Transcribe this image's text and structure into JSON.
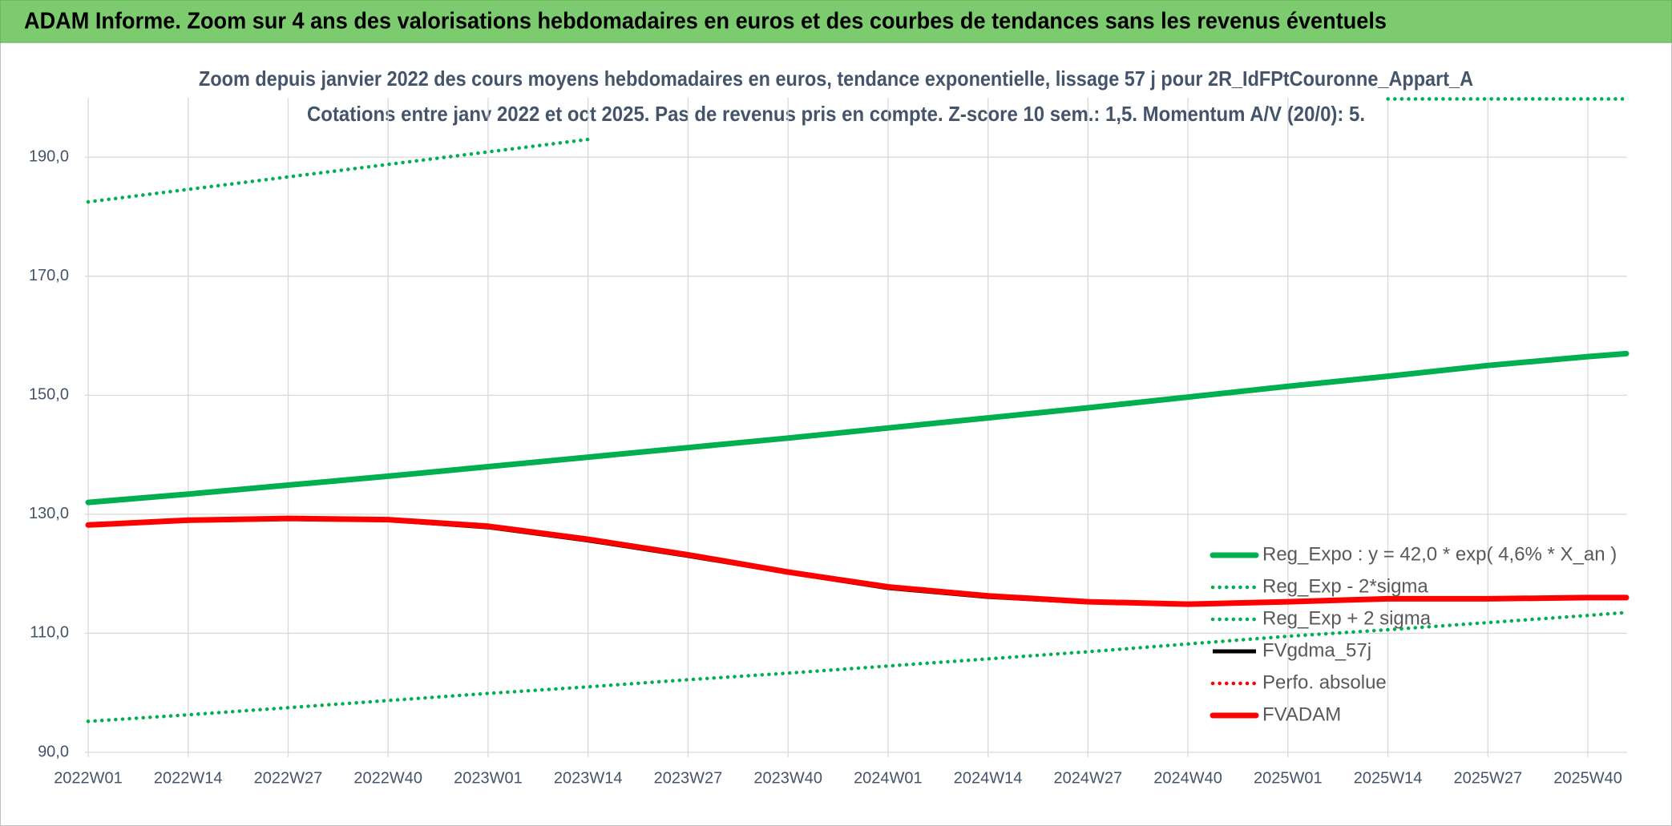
{
  "header": {
    "title": "ADAM Informe. Zoom sur 4 ans des valorisations hebdomadaires en euros et des courbes de tendances sans les revenus éventuels"
  },
  "chart_data": {
    "type": "line",
    "title": "Zoom depuis janvier 2022 des cours moyens hebdomadaires en euros, tendance exponentielle, lissage 57 j pour 2R_IdFPtCouronne_Appart_A",
    "subtitle": "Cotations entre janv 2022 et oct 2025. Pas de revenus pris en compte. Z-score 10 sem.: 1,5. Momentum A/V (20/0): 5.",
    "x": [
      0,
      13,
      26,
      39,
      52,
      65,
      78,
      91,
      104,
      117,
      130,
      143,
      156,
      169,
      182,
      195,
      200
    ],
    "xlim": [
      0,
      200
    ],
    "xticks": [
      {
        "value": 0,
        "label": "2022W01"
      },
      {
        "value": 13,
        "label": "2022W14"
      },
      {
        "value": 26,
        "label": "2022W27"
      },
      {
        "value": 39,
        "label": "2022W40"
      },
      {
        "value": 52,
        "label": "2023W01"
      },
      {
        "value": 65,
        "label": "2023W14"
      },
      {
        "value": 78,
        "label": "2023W27"
      },
      {
        "value": 91,
        "label": "2023W40"
      },
      {
        "value": 104,
        "label": "2024W01"
      },
      {
        "value": 117,
        "label": "2024W14"
      },
      {
        "value": 130,
        "label": "2024W27"
      },
      {
        "value": 143,
        "label": "2024W40"
      },
      {
        "value": 156,
        "label": "2025W01"
      },
      {
        "value": 169,
        "label": "2025W14"
      },
      {
        "value": 182,
        "label": "2025W27"
      },
      {
        "value": 195,
        "label": "2025W40"
      }
    ],
    "ylim": [
      90,
      200
    ],
    "yticks": [
      {
        "value": 90,
        "label": "90,0"
      },
      {
        "value": 110,
        "label": "110,0"
      },
      {
        "value": 130,
        "label": "130,0"
      },
      {
        "value": 150,
        "label": "150,0"
      },
      {
        "value": 170,
        "label": "170,0"
      },
      {
        "value": 190,
        "label": "190,0"
      }
    ],
    "grid": true,
    "legend": "lower right",
    "series": [
      {
        "name": "Reg_Expo : y = 42,0 * exp( 4,6% *  X_an )",
        "color": "#00b050",
        "style": "thick",
        "values": [
          132.0,
          133.4,
          134.9,
          136.4,
          138.0,
          139.6,
          141.2,
          142.8,
          144.5,
          146.2,
          147.9,
          149.7,
          151.5,
          153.2,
          155.0,
          156.5,
          157.0
        ]
      },
      {
        "name": "Reg_Exp - 2*sigma",
        "color": "#00b050",
        "style": "dotted",
        "values": [
          95.2,
          96.3,
          97.5,
          98.7,
          99.9,
          101.0,
          102.2,
          103.3,
          104.5,
          105.7,
          106.9,
          108.2,
          109.5,
          110.6,
          111.8,
          113.0,
          113.5
        ]
      },
      {
        "name": "Reg_Exp + 2 sigma",
        "color": "#00b050",
        "style": "dotted",
        "values": [
          182.5,
          184.6,
          186.7,
          188.8,
          190.9,
          193.0,
          null,
          null,
          null,
          null,
          null,
          null,
          null,
          199.8,
          199.8,
          199.8,
          199.8
        ]
      },
      {
        "name": "FVgdma_57j",
        "color": "#000000",
        "style": "solid",
        "values": [
          128.2,
          128.9,
          129.2,
          129.0,
          127.8,
          125.6,
          123.0,
          120.2,
          117.6,
          116.1,
          115.2,
          114.9,
          115.3,
          115.8,
          115.8,
          116.0,
          116.0
        ]
      },
      {
        "name": "Perfo. absolue",
        "color": "#ff0000",
        "style": "dotted",
        "values": [
          null,
          null,
          null,
          null,
          null,
          null,
          null,
          null,
          null,
          null,
          null,
          null,
          null,
          null,
          null,
          null,
          null
        ]
      },
      {
        "name": "FVADAM",
        "color": "#ff0000",
        "style": "thick",
        "values": [
          128.2,
          129.0,
          129.3,
          129.1,
          128.0,
          125.8,
          123.2,
          120.3,
          117.8,
          116.3,
          115.3,
          114.9,
          115.3,
          115.8,
          115.8,
          116.0,
          116.0
        ]
      }
    ]
  }
}
